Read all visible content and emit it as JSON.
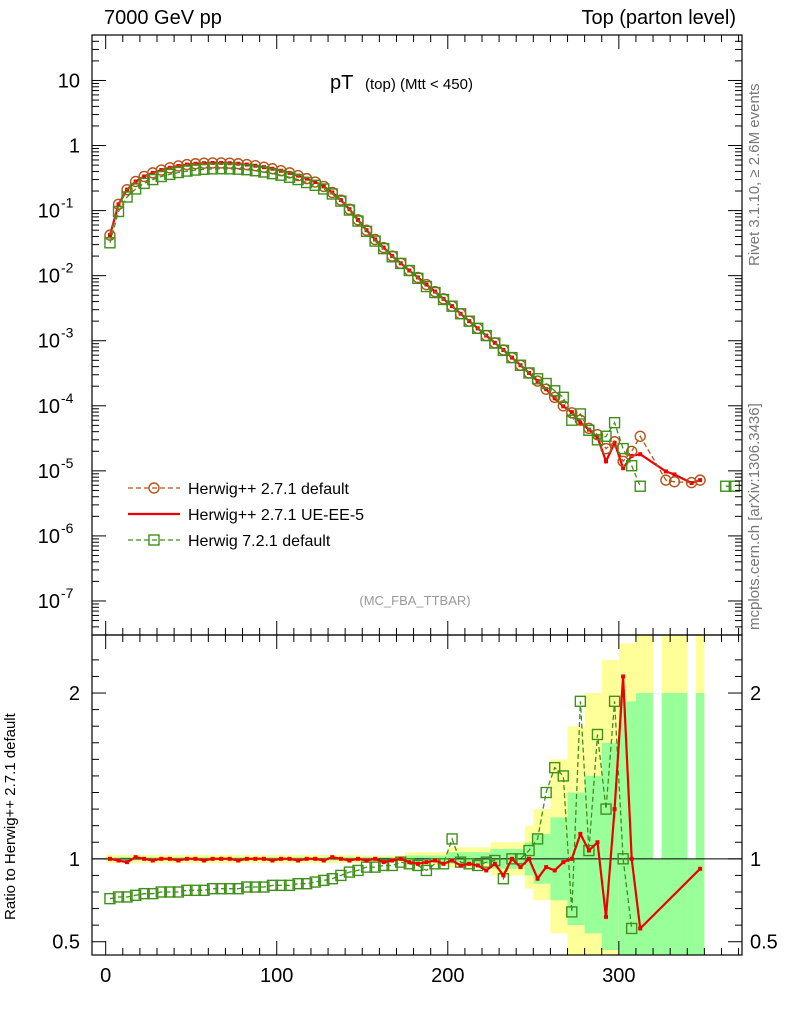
{
  "header": {
    "left": "7000 GeV pp",
    "right": "Top (parton level)"
  },
  "side_labels": {
    "top": "Rivet 3.1.10, ≥ 2.6M events",
    "bottom": "mcplots.cern.ch [arXiv:1306.3436]"
  },
  "plot_title": {
    "main": "pT",
    "sub": "(top) (Mtt < 450)"
  },
  "watermark": "(MC_FBA_TTBAR)",
  "ratio_ylabel": "Ratio to Herwig++ 2.7.1 default",
  "colors": {
    "herwigpp_default": "#b5541c",
    "herwigpp_ueee5": "#ee0000",
    "herwig721": "#3f8f1a",
    "band_outer": "#ffff99",
    "band_inner": "#99ff99"
  },
  "chart_data": [
    {
      "type": "line",
      "panel": "main",
      "title": "pT (top) (Mtt < 450)",
      "xlim": [
        -8,
        372
      ],
      "ylog": true,
      "ylim": [
        3e-08,
        50
      ],
      "y_ticks": [
        "10",
        "1",
        "10^-1",
        "10^-2",
        "10^-3",
        "10^-4",
        "10^-5",
        "10^-6",
        "10^-7"
      ],
      "x_ticks": [
        "0",
        "100",
        "200",
        "300"
      ],
      "legend_position": "lower-left",
      "x": [
        2.5,
        7.5,
        12.5,
        17.5,
        22.5,
        27.5,
        32.5,
        37.5,
        42.5,
        47.5,
        52.5,
        57.5,
        62.5,
        67.5,
        72.5,
        77.5,
        82.5,
        87.5,
        92.5,
        97.5,
        102.5,
        107.5,
        112.5,
        117.5,
        122.5,
        127.5,
        132.5,
        137.5,
        142.5,
        147.5,
        152.5,
        157.5,
        162.5,
        167.5,
        172.5,
        177.5,
        182.5,
        187.5,
        192.5,
        197.5,
        202.5,
        207.5,
        212.5,
        217.5,
        222.5,
        227.5,
        232.5,
        237.5,
        242.5,
        247.5,
        252.5,
        257.5,
        262.5,
        267.5,
        272.5,
        277.5,
        282.5,
        287.5,
        292.5,
        297.5,
        302.5,
        307.5,
        312.5,
        327.5,
        332.5,
        342.5,
        347.5,
        362.5,
        367.5
      ],
      "series": [
        {
          "name": "Herwig++ 2.7.1 default",
          "style": "dashed-open-circle",
          "values": [
            0.042,
            0.125,
            0.21,
            0.28,
            0.335,
            0.38,
            0.42,
            0.455,
            0.485,
            0.51,
            0.525,
            0.535,
            0.54,
            0.54,
            0.535,
            0.525,
            0.51,
            0.49,
            0.465,
            0.44,
            0.41,
            0.38,
            0.345,
            0.31,
            0.275,
            0.235,
            0.19,
            0.145,
            0.105,
            0.072,
            0.05,
            0.036,
            0.027,
            0.02,
            0.0155,
            0.012,
            0.0094,
            0.0073,
            0.0057,
            0.0044,
            0.0034,
            0.0026,
            0.002,
            0.00155,
            0.0012,
            0.00093,
            0.00072,
            0.00055,
            0.00042,
            0.00032,
            0.00024,
            0.00018,
            0.000135,
            0.0001,
            7.8e-05,
            6e-05,
            4.5e-05,
            3.6e-05,
            2.2e-05,
            2.8e-05,
            1.4e-05,
            2e-05,
            3.4e-05,
            7.2e-06,
            6.8e-06,
            6.6e-06,
            7.2e-06,
            null,
            null
          ]
        },
        {
          "name": "Herwig++ 2.7.1 UE-EE-5",
          "style": "solid-line-errorbars",
          "values": [
            0.042,
            0.125,
            0.21,
            0.28,
            0.335,
            0.38,
            0.42,
            0.455,
            0.485,
            0.51,
            0.525,
            0.535,
            0.54,
            0.54,
            0.535,
            0.525,
            0.51,
            0.49,
            0.465,
            0.44,
            0.41,
            0.38,
            0.345,
            0.31,
            0.275,
            0.235,
            0.19,
            0.145,
            0.105,
            0.072,
            0.05,
            0.036,
            0.027,
            0.02,
            0.0155,
            0.012,
            0.0094,
            0.0073,
            0.0057,
            0.0044,
            0.0034,
            0.0026,
            0.002,
            0.00155,
            0.0012,
            0.00093,
            0.00072,
            0.00055,
            0.00042,
            0.00032,
            0.00024,
            0.00018,
            0.00013,
            9.8e-05,
            8e-05,
            5.5e-05,
            4.3e-05,
            3.3e-05,
            1.4e-05,
            2.7e-05,
            1.1e-05,
            1.7e-05,
            1.8e-05,
            9.8e-06,
            8.8e-06,
            6.5e-06,
            7.2e-06,
            null,
            null
          ]
        },
        {
          "name": "Herwig 7.2.1 default",
          "style": "dashed-open-square",
          "values": [
            0.032,
            0.097,
            0.162,
            0.215,
            0.262,
            0.3,
            0.334,
            0.36,
            0.385,
            0.405,
            0.42,
            0.432,
            0.438,
            0.44,
            0.438,
            0.433,
            0.425,
            0.41,
            0.392,
            0.37,
            0.35,
            0.325,
            0.3,
            0.27,
            0.245,
            0.215,
            0.18,
            0.14,
            0.102,
            0.069,
            0.048,
            0.034,
            0.026,
            0.0195,
            0.0154,
            0.012,
            0.0091,
            0.0068,
            0.0055,
            0.0043,
            0.0034,
            0.0026,
            0.002,
            0.00155,
            0.0012,
            0.00092,
            0.00071,
            0.00055,
            0.00042,
            0.00032,
            0.00026,
            0.00022,
            0.00017,
            0.000135,
            6e-05,
            7.5e-05,
            4.2e-05,
            3e-05,
            3.4e-05,
            5.5e-05,
            2.2e-05,
            1.2e-05,
            5.8e-06,
            null,
            null,
            null,
            null,
            5.8e-06,
            5.8e-06
          ]
        }
      ]
    },
    {
      "type": "line",
      "panel": "ratio",
      "ylabel": "Ratio to Herwig++ 2.7.1 default",
      "xlim": [
        -8,
        372
      ],
      "ylim": [
        0.42,
        2.35
      ],
      "y_ticks": [
        "0.5",
        "1",
        "2"
      ],
      "reference_line": 1,
      "x": [
        2.5,
        7.5,
        12.5,
        17.5,
        22.5,
        27.5,
        32.5,
        37.5,
        42.5,
        47.5,
        52.5,
        57.5,
        62.5,
        67.5,
        72.5,
        77.5,
        82.5,
        87.5,
        92.5,
        97.5,
        102.5,
        107.5,
        112.5,
        117.5,
        122.5,
        127.5,
        132.5,
        137.5,
        142.5,
        147.5,
        152.5,
        157.5,
        162.5,
        167.5,
        172.5,
        177.5,
        182.5,
        187.5,
        192.5,
        197.5,
        202.5,
        207.5,
        212.5,
        217.5,
        222.5,
        227.5,
        232.5,
        237.5,
        242.5,
        247.5,
        252.5,
        257.5,
        262.5,
        267.5,
        272.5,
        277.5,
        282.5,
        287.5,
        292.5,
        297.5,
        302.5,
        307.5,
        312.5,
        347.5
      ],
      "series": [
        {
          "name": "Herwig++ 2.7.1 UE-EE-5",
          "values": [
            1.0,
            0.99,
            0.98,
            1.01,
            1.0,
            0.99,
            1.0,
            1.0,
            0.99,
            1.0,
            1.0,
            0.99,
            1.0,
            1.0,
            1.0,
            0.99,
            1.0,
            1.0,
            1.0,
            0.99,
            1.0,
            1.0,
            0.99,
            1.0,
            1.0,
            0.99,
            1.01,
            1.0,
            0.99,
            1.0,
            0.99,
            1.0,
            0.98,
            0.99,
            1.0,
            0.98,
            0.97,
            0.98,
            0.99,
            0.97,
            0.99,
            0.96,
            0.97,
            0.96,
            0.93,
            0.97,
            0.9,
            1.0,
            0.95,
            1.0,
            0.88,
            0.95,
            0.93,
            0.98,
            1.0,
            1.15,
            1.05,
            1.1,
            0.65,
            1.3,
            2.1,
            1.0,
            0.58,
            0.94
          ]
        },
        {
          "name": "Herwig 7.2.1 default",
          "values": [
            0.76,
            0.77,
            0.77,
            0.78,
            0.79,
            0.79,
            0.8,
            0.8,
            0.8,
            0.81,
            0.81,
            0.81,
            0.82,
            0.82,
            0.82,
            0.82,
            0.83,
            0.83,
            0.83,
            0.84,
            0.84,
            0.84,
            0.85,
            0.85,
            0.86,
            0.87,
            0.88,
            0.9,
            0.92,
            0.93,
            0.95,
            0.95,
            0.96,
            0.96,
            0.98,
            0.97,
            0.96,
            0.93,
            0.97,
            0.97,
            1.12,
            0.98,
            0.97,
            0.96,
            0.98,
            0.99,
            0.88,
            1.0,
            1.0,
            1.05,
            1.12,
            1.4,
            1.55,
            1.5,
            0.68,
            1.95,
            1.05,
            1.75,
            1.3,
            1.95,
            1.0,
            0.58,
            null,
            null
          ]
        }
      ],
      "uncertainty_band": {
        "x_edges": [
          0,
          150,
          175,
          200,
          225,
          245,
          250,
          260,
          270,
          280,
          290,
          300,
          310,
          320,
          325,
          340,
          345,
          350
        ],
        "outer_lo": [
          0.975,
          0.98,
          0.96,
          0.95,
          0.9,
          0.82,
          0.75,
          0.55,
          0.42,
          0.42,
          0.42,
          0.42,
          0.42,
          0.42,
          0.42,
          0.42,
          0.42
        ],
        "outer_hi": [
          1.025,
          1.02,
          1.04,
          1.07,
          1.1,
          1.2,
          1.3,
          1.6,
          1.8,
          2.0,
          2.2,
          2.3,
          2.35,
          1.0,
          2.35,
          1.0,
          2.35
        ],
        "inner_lo": [
          0.99,
          0.99,
          0.98,
          0.97,
          0.94,
          0.9,
          0.85,
          0.75,
          0.6,
          0.55,
          0.45,
          0.42,
          0.42,
          0.42,
          0.42,
          0.42,
          0.42
        ],
        "inner_hi": [
          1.01,
          1.01,
          1.02,
          1.04,
          1.06,
          1.1,
          1.15,
          1.25,
          1.4,
          1.5,
          1.7,
          1.95,
          2.0,
          1.0,
          2.0,
          1.0,
          2.0
        ]
      }
    }
  ]
}
